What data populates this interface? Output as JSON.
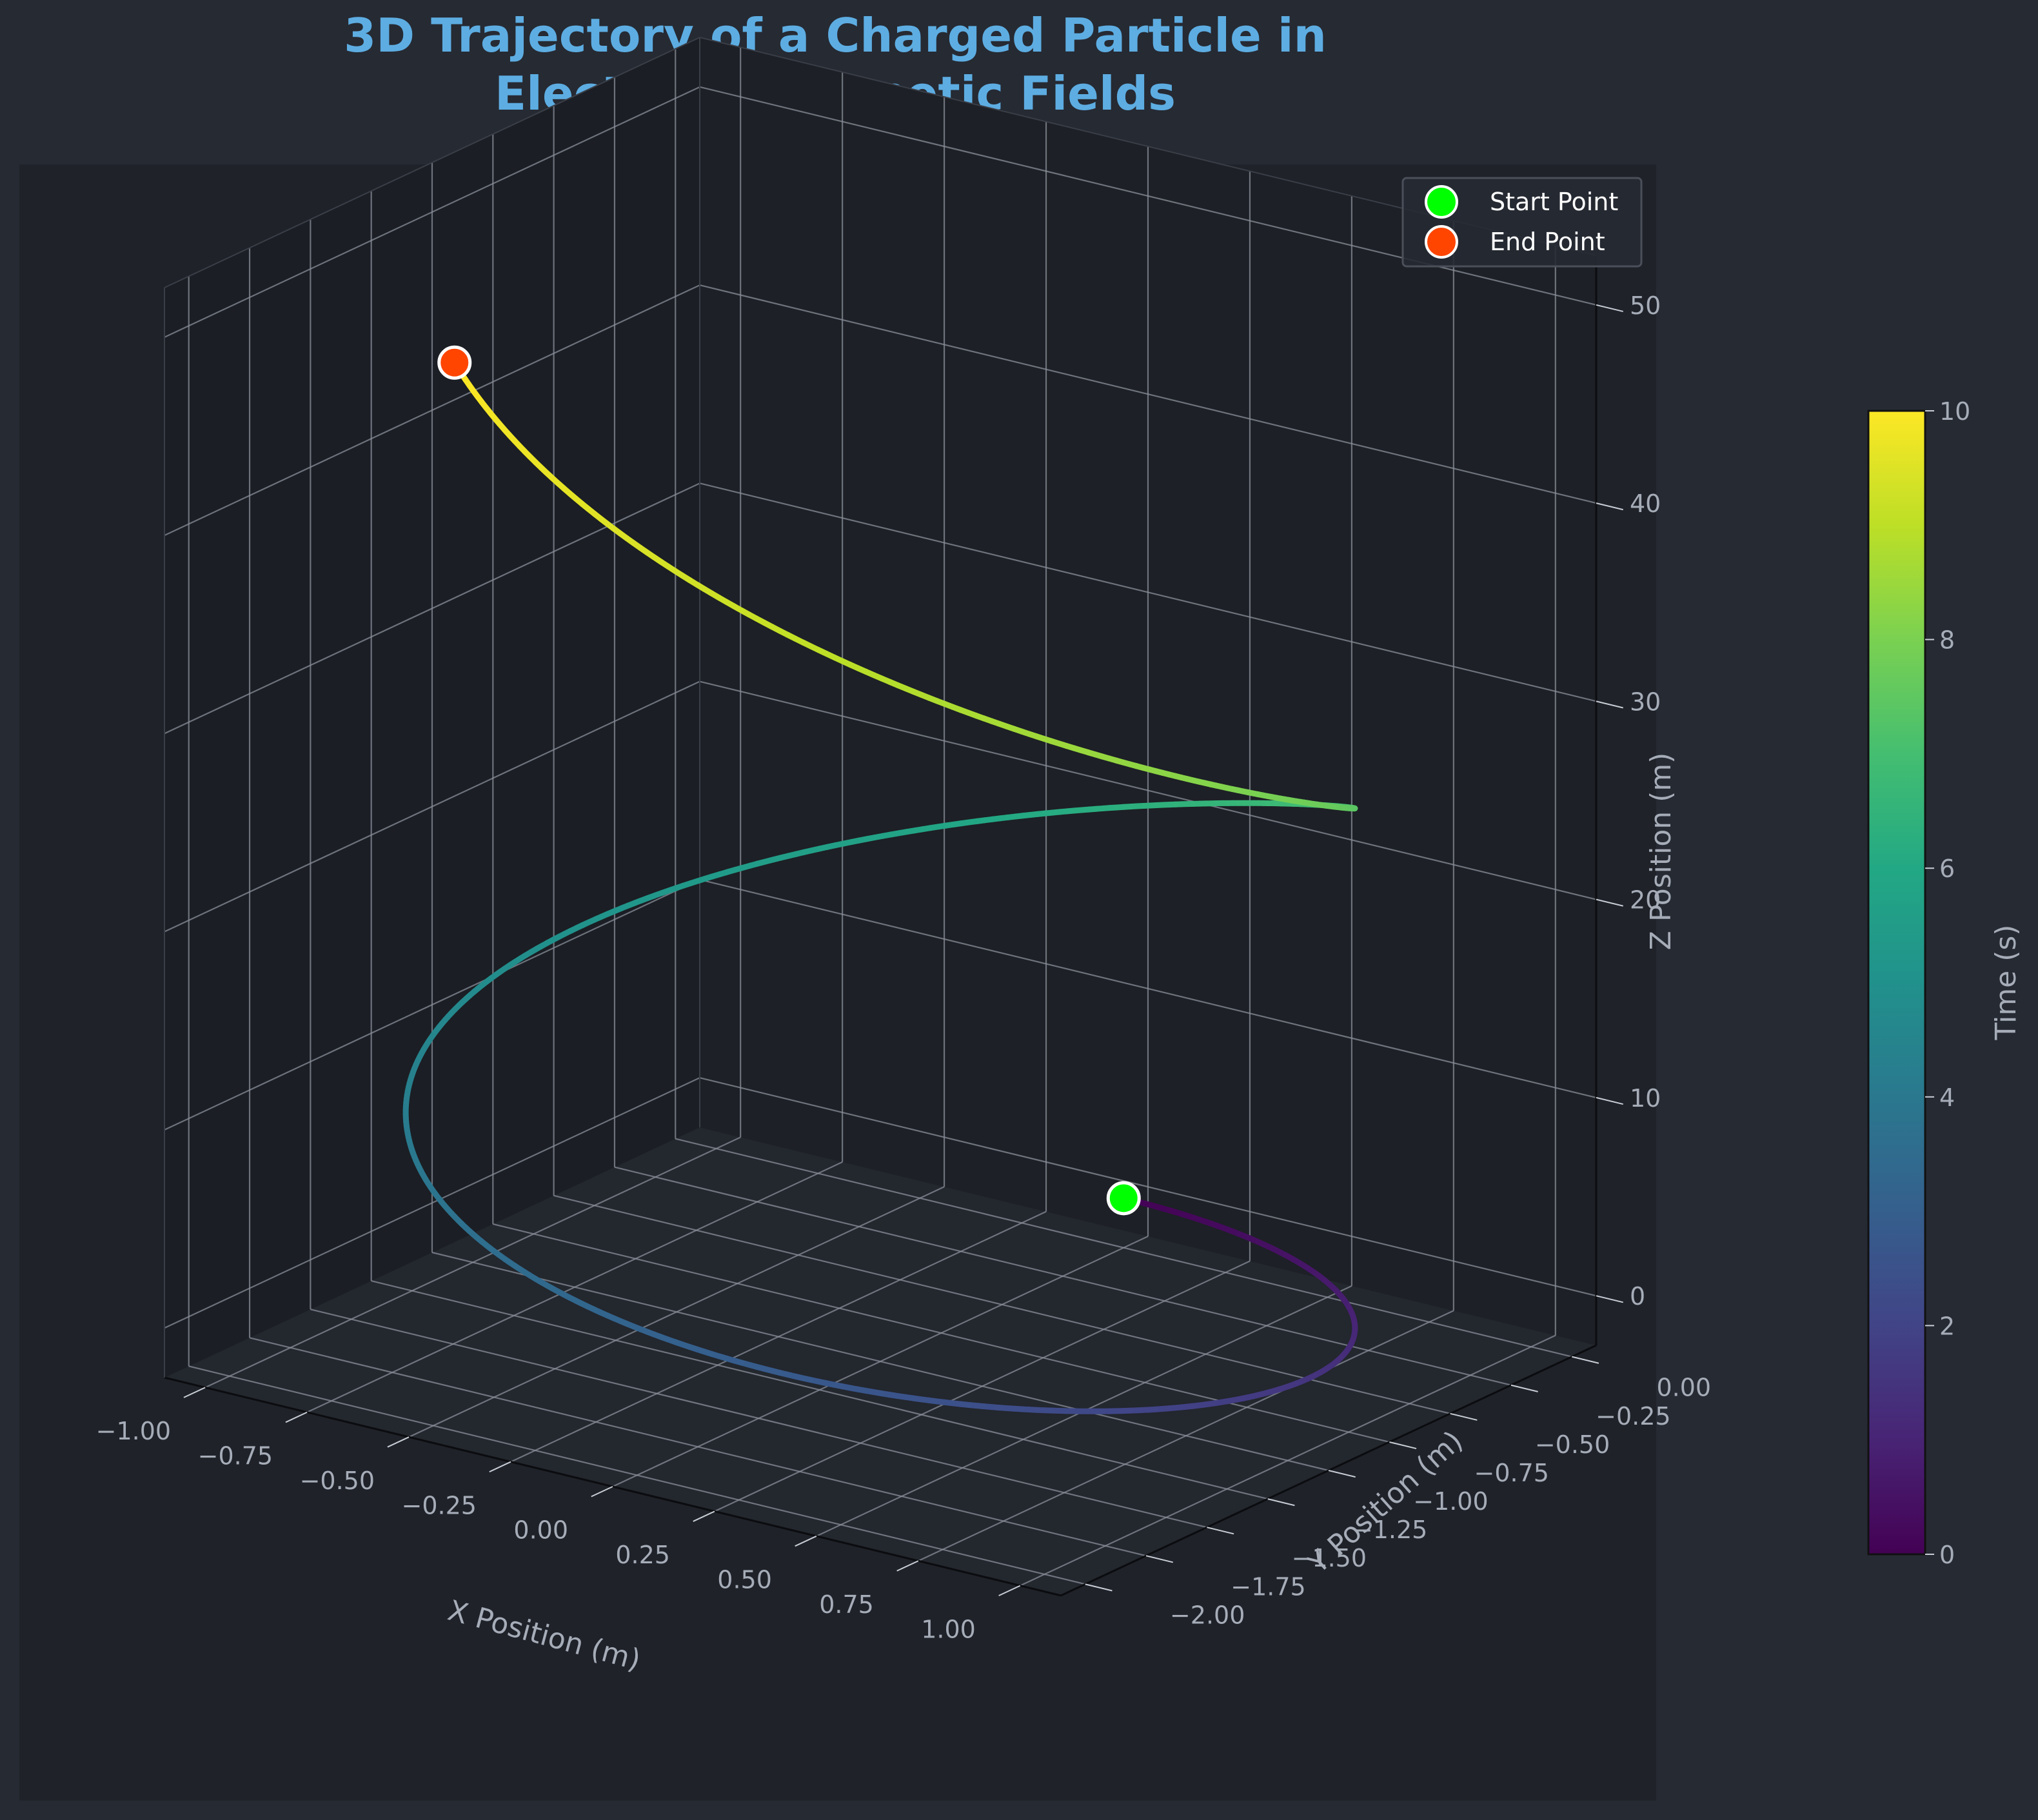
{
  "chart_data": {
    "type": "line3d",
    "title_lines": [
      "3D Trajectory of a Charged Particle in",
      "Electric & Magnetic Fields"
    ],
    "xlabel": "X Position (m)",
    "ylabel": "Y Position (m)",
    "zlabel": "Z Position (m)",
    "xlim": [
      -1.1,
      1.1
    ],
    "ylim": [
      -2.1,
      0.1
    ],
    "zlim": [
      -2.5,
      52.5
    ],
    "x_ticks": [
      -1.0,
      -0.75,
      -0.5,
      -0.25,
      0.0,
      0.25,
      0.5,
      0.75,
      1.0
    ],
    "x_tick_labels": [
      "−1.00",
      "−0.75",
      "−0.50",
      "−0.25",
      "0.00",
      "0.25",
      "0.50",
      "0.75",
      "1.00"
    ],
    "y_ticks": [
      0.0,
      -0.25,
      -0.5,
      -0.75,
      -1.0,
      -1.25,
      -1.5,
      -1.75,
      -2.0
    ],
    "y_tick_labels": [
      "0.00",
      "−0.25",
      "−0.50",
      "−0.75",
      "−1.00",
      "−1.25",
      "−1.50",
      "−1.75",
      "−2.00"
    ],
    "z_ticks": [
      0,
      10,
      20,
      30,
      40,
      50
    ],
    "z_tick_labels": [
      "0",
      "10",
      "20",
      "30",
      "40",
      "50"
    ],
    "trajectory": {
      "t_range": [
        0,
        10
      ],
      "x": "sin(omega*t)",
      "y": "cos(omega*t) - 1",
      "z": "0.5*t^2",
      "omega": 1.0,
      "colormap": "viridis"
    },
    "start_point": {
      "t": 0,
      "x": 0.0,
      "y": 0.0,
      "z": 0.0
    },
    "end_point": {
      "t": 10,
      "x": -0.544,
      "y": -1.839,
      "z": 50.0
    },
    "legend": [
      {
        "label": "Start Point",
        "color": "#00ff00"
      },
      {
        "label": "End Point",
        "color": "#ff4500"
      }
    ],
    "legend_location": "upper right",
    "colorbar": {
      "label": "Time (s)",
      "range": [
        0,
        10
      ],
      "ticks": [
        0,
        2,
        4,
        6,
        8,
        10
      ],
      "tick_labels": [
        "0",
        "2",
        "4",
        "6",
        "8",
        "10"
      ]
    },
    "colors": {
      "figure_bg": "#262a33",
      "axes_bg": "#1f2229",
      "title": "#5dade2",
      "text": "#a6adb8",
      "grid": "#8a8f99",
      "start_marker": "#00ff00",
      "end_marker": "#ff4500",
      "marker_edge": "#ffffff"
    }
  }
}
